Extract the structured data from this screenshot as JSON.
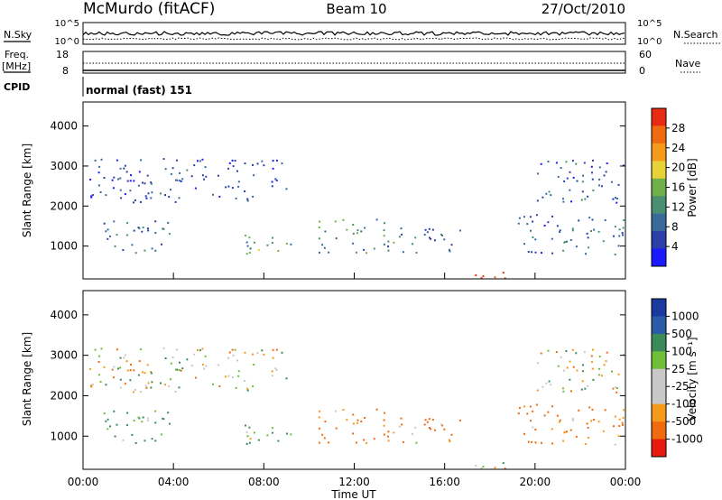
{
  "header": {
    "station": "McMurdo (fitACF)",
    "beam": "Beam 10",
    "date": "27/Oct/2010"
  },
  "housekeeping": {
    "nsky_label": "N.Sky",
    "nsearch_label": "N.Search",
    "nsky_ticks": [
      "10^5",
      "10^0"
    ],
    "nsearch_ticks": [
      "10^5",
      "10^0"
    ],
    "freq_label": "Freq.",
    "freq_unit": "[MHz]",
    "freq_ticks": [
      "18",
      "8"
    ],
    "nave_label": "Nave",
    "nave_ticks": [
      "60",
      "0"
    ],
    "cpid_label": "CPID",
    "cpid_value": "normal (fast) 151"
  },
  "colors": {
    "power": [
      "#1a1aff",
      "#2a3fa8",
      "#3a6a9a",
      "#4a9070",
      "#6fb04a",
      "#e8d23a",
      "#f59a1a",
      "#f06a10",
      "#e82a10"
    ],
    "velocity": [
      "#e81a10",
      "#f06a10",
      "#f59a1a",
      "#c8c8c8",
      "#c8c8c8",
      "#6fbf3a",
      "#3a8a5a",
      "#2a5aa8",
      "#1a3aa0"
    ]
  },
  "chart_data": [
    {
      "type": "heatmap",
      "title": "",
      "ylabel": "Slant Range [km]",
      "xlabel": "",
      "ylim": [
        180,
        4600
      ],
      "yticks": [
        1000,
        2000,
        3000,
        4000
      ],
      "xlim": [
        0,
        24
      ],
      "colorbar": {
        "label": "Power [dB]",
        "ticks": [
          "28",
          "24",
          "20",
          "16",
          "12",
          "8",
          "4"
        ],
        "range": [
          0,
          32
        ]
      },
      "echo_regions": [
        {
          "t": [
            0.4,
            3.8
          ],
          "r": [
            850,
            1650
          ],
          "mean": 9
        },
        {
          "t": [
            7.0,
            9.2
          ],
          "r": [
            800,
            1400
          ],
          "mean": 13
        },
        {
          "t": [
            10.4,
            13.8
          ],
          "r": [
            850,
            1700
          ],
          "mean": 12
        },
        {
          "t": [
            13.8,
            16.8
          ],
          "r": [
            850,
            1500
          ],
          "mean": 9
        },
        {
          "t": [
            0.2,
            9.0
          ],
          "r": [
            2100,
            3200
          ],
          "mean": 6
        },
        {
          "t": [
            20.0,
            24.0
          ],
          "r": [
            2100,
            3200
          ],
          "mean": 7
        },
        {
          "t": [
            19.2,
            24.0
          ],
          "r": [
            800,
            1800
          ],
          "mean": 8
        },
        {
          "t": [
            17.0,
            19.3
          ],
          "r": [
            200,
            420
          ],
          "mean": 30
        }
      ]
    },
    {
      "type": "heatmap",
      "title": "",
      "ylabel": "Slant Range [km]",
      "xlabel": "Time UT",
      "ylim": [
        180,
        4600
      ],
      "yticks": [
        1000,
        2000,
        3000,
        4000
      ],
      "xlim": [
        0,
        24
      ],
      "xticks": [
        "00:00",
        "04:00",
        "08:00",
        "12:00",
        "16:00",
        "20:00",
        "00:00"
      ],
      "colorbar": {
        "label": "Velocity [m s⁻¹]",
        "ticks": [
          "1000",
          "500",
          "100",
          "25",
          "-25",
          "-100",
          "-500",
          "-1000"
        ],
        "range": [
          -1000,
          1000
        ]
      },
      "echo_regions": [
        {
          "t": [
            0.4,
            3.8
          ],
          "r": [
            850,
            1650
          ],
          "mean": 150
        },
        {
          "t": [
            7.0,
            9.2
          ],
          "r": [
            800,
            1400
          ],
          "mean": 120
        },
        {
          "t": [
            10.4,
            13.8
          ],
          "r": [
            850,
            1700
          ],
          "mean": -150
        },
        {
          "t": [
            13.8,
            16.8
          ],
          "r": [
            850,
            1500
          ],
          "mean": -120
        },
        {
          "t": [
            0.2,
            9.0
          ],
          "r": [
            2100,
            3200
          ],
          "mean": 0
        },
        {
          "t": [
            20.0,
            24.0
          ],
          "r": [
            2100,
            3200
          ],
          "mean": 0
        },
        {
          "t": [
            19.2,
            24.0
          ],
          "r": [
            800,
            1800
          ],
          "mean": -150
        },
        {
          "t": [
            17.0,
            19.3
          ],
          "r": [
            200,
            420
          ],
          "mean": 0
        }
      ]
    }
  ]
}
